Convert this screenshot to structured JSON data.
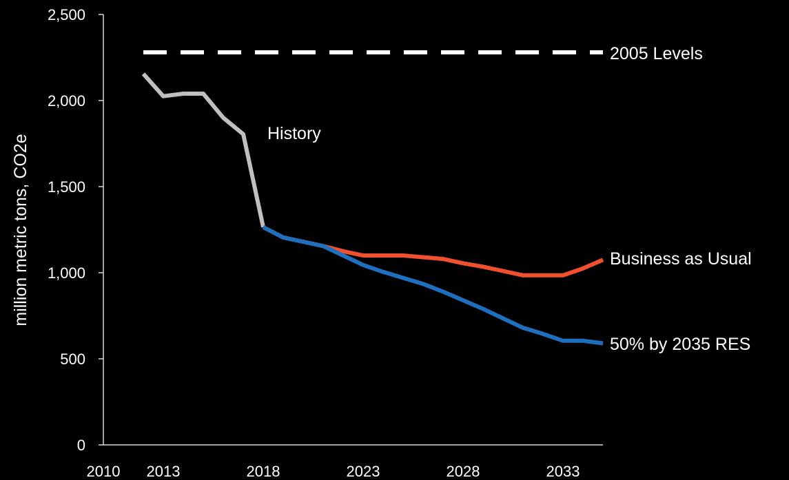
{
  "chart_data": {
    "type": "line",
    "title": "",
    "xlabel": "",
    "ylabel": "million metric tons, CO2e",
    "xlim": [
      2010,
      2035
    ],
    "ylim": [
      0,
      2500
    ],
    "grid": false,
    "legend": "none",
    "x_ticks": [
      "2010",
      "2013",
      "2018",
      "2023",
      "2028",
      "2033"
    ],
    "y_ticks": [
      "0",
      "500",
      "1,000",
      "1,500",
      "2,000",
      "2,500"
    ],
    "y_tick_values": [
      0,
      500,
      1000,
      1500,
      2000,
      2500
    ],
    "series": [
      {
        "name": "2005 Levels",
        "color": "#ffffff",
        "dashed": true,
        "x": [
          2012,
          2035
        ],
        "y": [
          2280,
          2280
        ]
      },
      {
        "name": "History",
        "color": "#bfbfbf",
        "dashed": false,
        "x": [
          2012,
          2013,
          2014,
          2015,
          2016,
          2017,
          2018
        ],
        "y": [
          2155,
          2025,
          2040,
          2040,
          1900,
          1805,
          1265
        ]
      },
      {
        "name": "Business as Usual",
        "color": "#f0502d",
        "dashed": false,
        "x": [
          2018,
          2019,
          2020,
          2021,
          2022,
          2023,
          2024,
          2025,
          2026,
          2027,
          2028,
          2029,
          2030,
          2031,
          2032,
          2033,
          2034,
          2035
        ],
        "y": [
          1265,
          1205,
          1180,
          1155,
          1125,
          1100,
          1100,
          1100,
          1090,
          1080,
          1055,
          1035,
          1010,
          985,
          985,
          985,
          1025,
          1075
        ]
      },
      {
        "name": "50% by 2035 RES",
        "color": "#1f6fbf",
        "dashed": false,
        "x": [
          2018,
          2019,
          2020,
          2021,
          2022,
          2023,
          2024,
          2025,
          2026,
          2027,
          2028,
          2029,
          2030,
          2031,
          2032,
          2033,
          2034,
          2035
        ],
        "y": [
          1265,
          1205,
          1180,
          1155,
          1100,
          1045,
          1005,
          970,
          935,
          890,
          840,
          790,
          735,
          680,
          645,
          605,
          605,
          590
        ]
      }
    ]
  }
}
